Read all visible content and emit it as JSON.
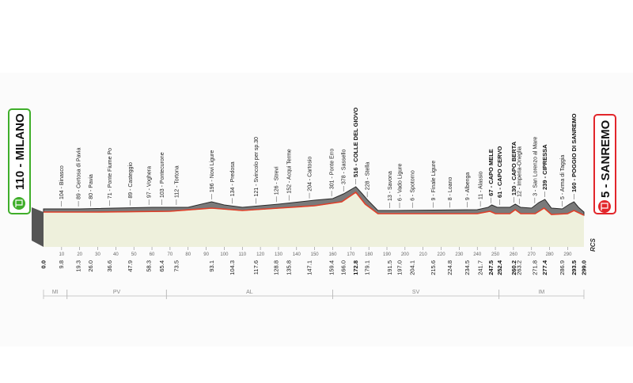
{
  "start": {
    "label": "110 - MILANO",
    "color": "#3fae2a"
  },
  "finish": {
    "label": "5 - SANREMO",
    "color": "#e2262b"
  },
  "profile": {
    "distance_km": 299.0,
    "places": [
      {
        "km": 9.8,
        "label": "104 - Binasco"
      },
      {
        "km": 19.3,
        "label": "89 - Certosa di Pavia"
      },
      {
        "km": 26.0,
        "label": "80 - Pavia"
      },
      {
        "km": 36.6,
        "label": "71 - Ponte Fiume Po"
      },
      {
        "km": 47.9,
        "label": "89 - Casteggio"
      },
      {
        "km": 58.3,
        "label": "97 - Voghera"
      },
      {
        "km": 65.4,
        "label": "103 - Pontecurone"
      },
      {
        "km": 73.5,
        "label": "112 - Tortona"
      },
      {
        "km": 93.1,
        "label": "196 - Novi Ligure"
      },
      {
        "km": 104.3,
        "label": "134 - Predosa"
      },
      {
        "km": 117.6,
        "label": "121 - Svincolo per sp.30"
      },
      {
        "km": 128.8,
        "label": "126 - Strevi"
      },
      {
        "km": 135.8,
        "label": "152 - Acqui Terme"
      },
      {
        "km": 147.1,
        "label": "204 - Cartosio"
      },
      {
        "km": 159.4,
        "label": "301 - Ponte Erro"
      },
      {
        "km": 166.0,
        "label": "378 - Sassello"
      },
      {
        "km": 172.8,
        "label": "516 - COLLE DEL GIOVO",
        "bold": true
      },
      {
        "km": 179.1,
        "label": "228 - Stella"
      },
      {
        "km": 191.5,
        "label": "13 - Savona"
      },
      {
        "km": 197.0,
        "label": "6 - Vado Ligure"
      },
      {
        "km": 204.1,
        "label": "6 - Spotorno"
      },
      {
        "km": 215.6,
        "label": "9 - Finale Ligure"
      },
      {
        "km": 224.8,
        "label": "8 - Loano"
      },
      {
        "km": 234.5,
        "label": "9 - Albenga"
      },
      {
        "km": 241.7,
        "label": "11 - Alassio"
      },
      {
        "km": 247.5,
        "label": "67 - CAPO MELE",
        "bold": true
      },
      {
        "km": 252.4,
        "label": "61 - CAPO CERVO",
        "bold": true
      },
      {
        "km": 260.2,
        "label": "130 - CAPO BERTA",
        "bold": true
      },
      {
        "km": 263.2,
        "label": "12 - Imperia-Oneglia"
      },
      {
        "km": 271.8,
        "label": "3 - San Lorenzo al Mare"
      },
      {
        "km": 277.4,
        "label": "239 - CIPRESSA",
        "bold": true
      },
      {
        "km": 286.9,
        "label": "5 - Arma di Taggia"
      },
      {
        "km": 293.5,
        "label": "160 - POGGIO DI SANREMO",
        "bold": true
      }
    ],
    "km_labels": [
      {
        "km": 0.0,
        "text": "0.0",
        "bold": true
      },
      {
        "km": 9.8,
        "text": "9.8"
      },
      {
        "km": 19.3,
        "text": "19.3"
      },
      {
        "km": 26.0,
        "text": "26.0"
      },
      {
        "km": 36.6,
        "text": "36.6"
      },
      {
        "km": 47.9,
        "text": "47.9"
      },
      {
        "km": 58.3,
        "text": "58.3"
      },
      {
        "km": 65.4,
        "text": "65.4"
      },
      {
        "km": 73.5,
        "text": "73.5"
      },
      {
        "km": 93.1,
        "text": "93.1"
      },
      {
        "km": 104.3,
        "text": "104.3"
      },
      {
        "km": 117.6,
        "text": "117.6"
      },
      {
        "km": 128.8,
        "text": "128.8"
      },
      {
        "km": 135.8,
        "text": "135.8"
      },
      {
        "km": 147.1,
        "text": "147.1"
      },
      {
        "km": 159.4,
        "text": "159.4"
      },
      {
        "km": 166.0,
        "text": "166.0"
      },
      {
        "km": 172.8,
        "text": "172.8",
        "bold": true
      },
      {
        "km": 179.1,
        "text": "179.1"
      },
      {
        "km": 191.5,
        "text": "191.5"
      },
      {
        "km": 197.0,
        "text": "197.0"
      },
      {
        "km": 204.1,
        "text": "204.1"
      },
      {
        "km": 215.6,
        "text": "215.6"
      },
      {
        "km": 224.8,
        "text": "224.8"
      },
      {
        "km": 234.5,
        "text": "234.5"
      },
      {
        "km": 241.7,
        "text": "241.7"
      },
      {
        "km": 247.5,
        "text": "247.5",
        "bold": true
      },
      {
        "km": 252.4,
        "text": "252.4",
        "bold": true
      },
      {
        "km": 260.2,
        "text": "260.2",
        "bold": true
      },
      {
        "km": 263.2,
        "text": "263.2"
      },
      {
        "km": 271.8,
        "text": "271.8"
      },
      {
        "km": 277.4,
        "text": "277.4",
        "bold": true
      },
      {
        "km": 286.9,
        "text": "286.9"
      },
      {
        "km": 293.5,
        "text": "293.5",
        "bold": true
      },
      {
        "km": 299.0,
        "text": "299.0",
        "bold": true
      }
    ],
    "ticks": [
      "10",
      "20",
      "30",
      "40",
      "50",
      "60",
      "70",
      "80",
      "90",
      "100",
      "110",
      "120",
      "130",
      "140",
      "150",
      "160",
      "170",
      "180",
      "190",
      "200",
      "210",
      "220",
      "230",
      "240",
      "250",
      "260",
      "270",
      "280",
      "290"
    ],
    "regions": [
      {
        "label": "MI",
        "from_km": 0,
        "to_km": 13
      },
      {
        "label": "PV",
        "from_km": 13,
        "to_km": 68
      },
      {
        "label": "AL",
        "from_km": 68,
        "to_km": 160
      },
      {
        "label": "SV",
        "from_km": 160,
        "to_km": 252
      },
      {
        "label": "IM",
        "from_km": 252,
        "to_km": 299
      }
    ]
  },
  "brand": {
    "logo": "RCS"
  },
  "colors": {
    "profile_fill": "#777777",
    "profile_top": "#333333",
    "road_line": "#e0402a",
    "ground_fill": "#eef0dc"
  }
}
